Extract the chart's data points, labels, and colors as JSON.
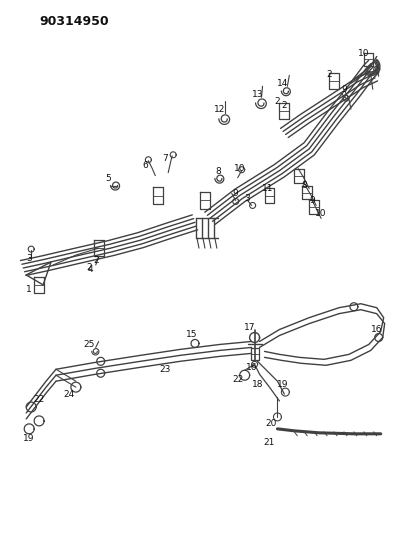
{
  "part_number": "90314950",
  "bg_color": "#ffffff",
  "line_color": "#404040",
  "text_color": "#111111",
  "fig_width": 3.94,
  "fig_height": 5.33,
  "dpi": 100
}
